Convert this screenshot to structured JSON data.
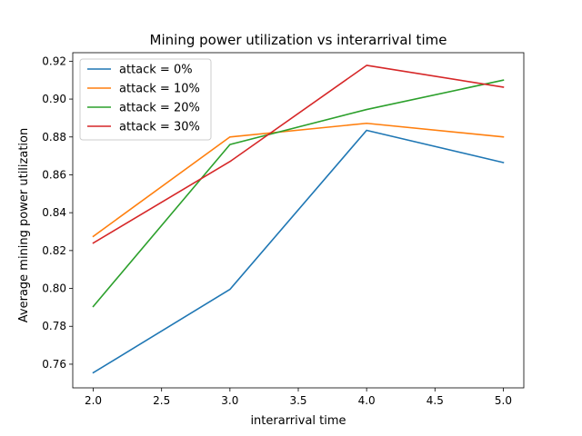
{
  "chart_data": {
    "type": "line",
    "title": "Mining power utilization vs interarrival time",
    "xlabel": "interarrival time",
    "ylabel": "Average mining power utilization",
    "xlim": [
      1.85,
      5.15
    ],
    "ylim": [
      0.7475,
      0.9245
    ],
    "xticks": [
      2.0,
      2.5,
      3.0,
      3.5,
      4.0,
      4.5,
      5.0
    ],
    "xtick_labels": [
      "2.0",
      "2.5",
      "3.0",
      "3.5",
      "4.0",
      "4.5",
      "5.0"
    ],
    "yticks": [
      0.76,
      0.78,
      0.8,
      0.82,
      0.84,
      0.86,
      0.88,
      0.9,
      0.92
    ],
    "ytick_labels": [
      "0.76",
      "0.78",
      "0.80",
      "0.82",
      "0.84",
      "0.86",
      "0.88",
      "0.90",
      "0.92"
    ],
    "grid": false,
    "legend_position": "top-left",
    "x": [
      2.0,
      3.0,
      4.0,
      5.0
    ],
    "series": [
      {
        "name": "attack = 0%",
        "color": "#1f77b4",
        "values": [
          0.7555,
          0.7995,
          0.8835,
          0.8665
        ]
      },
      {
        "name": "attack = 10%",
        "color": "#ff7f0e",
        "values": [
          0.8275,
          0.88,
          0.8872,
          0.88
        ]
      },
      {
        "name": "attack = 20%",
        "color": "#2ca02c",
        "values": [
          0.7905,
          0.876,
          0.8945,
          0.91
        ]
      },
      {
        "name": "attack = 30%",
        "color": "#d62728",
        "values": [
          0.824,
          0.867,
          0.9178,
          0.9063
        ]
      }
    ]
  }
}
